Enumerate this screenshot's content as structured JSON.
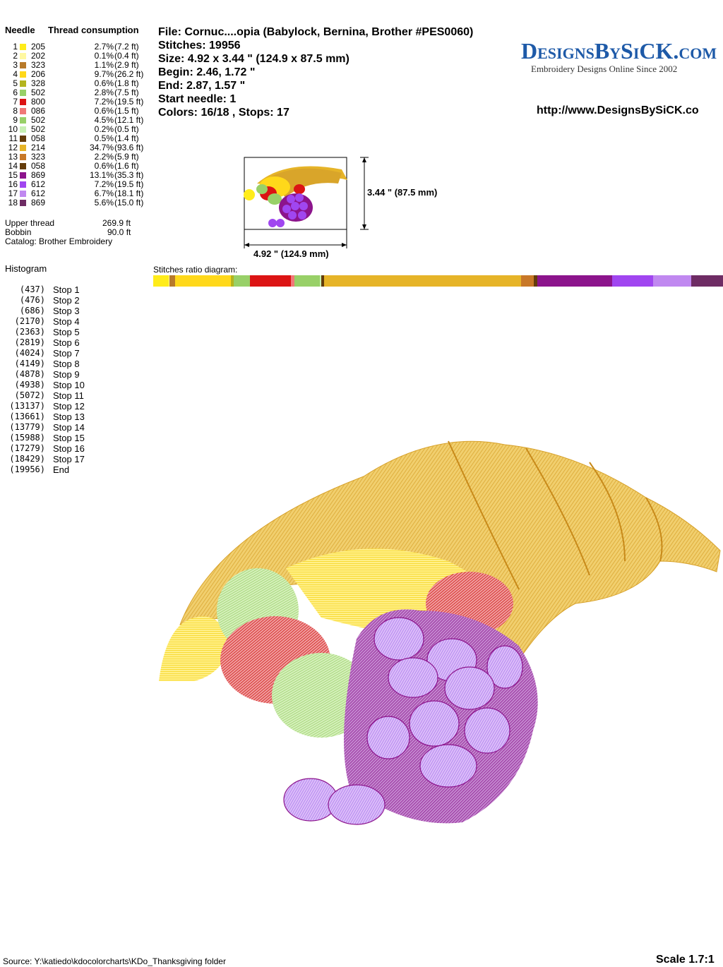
{
  "legend": {
    "needle_header": "Needle",
    "consumption_header": "Thread consumption",
    "rows": [
      {
        "num": "1",
        "code": "205",
        "pct": "2.7%",
        "len": "(7.2 ft)",
        "color": "#ffec1a",
        "ratio": 2.7
      },
      {
        "num": "2",
        "code": "202",
        "pct": "0.1%",
        "len": "(0.4 ft)",
        "color": "#fff8a0",
        "ratio": 0.1
      },
      {
        "num": "3",
        "code": "323",
        "pct": "1.1%",
        "len": "(2.9 ft)",
        "color": "#b87a2a",
        "ratio": 1.1
      },
      {
        "num": "4",
        "code": "206",
        "pct": "9.7%",
        "len": "(26.2 ft)",
        "color": "#ffd81a",
        "ratio": 9.7
      },
      {
        "num": "5",
        "code": "328",
        "pct": "0.6%",
        "len": "(1.8 ft)",
        "color": "#b4b41e",
        "ratio": 0.6
      },
      {
        "num": "6",
        "code": "502",
        "pct": "2.8%",
        "len": "(7.5 ft)",
        "color": "#98d068",
        "ratio": 2.8
      },
      {
        "num": "7",
        "code": "800",
        "pct": "7.2%",
        "len": "(19.5 ft)",
        "color": "#dc1414",
        "ratio": 7.2
      },
      {
        "num": "8",
        "code": "086",
        "pct": "0.6%",
        "len": "(1.5 ft)",
        "color": "#f07878",
        "ratio": 0.6
      },
      {
        "num": "9",
        "code": "502",
        "pct": "4.5%",
        "len": "(12.1 ft)",
        "color": "#98d068",
        "ratio": 4.5
      },
      {
        "num": "10",
        "code": "502",
        "pct": "0.2%",
        "len": "(0.5 ft)",
        "color": "#c8f0b4",
        "ratio": 0.2
      },
      {
        "num": "11",
        "code": "058",
        "pct": "0.5%",
        "len": "(1.4 ft)",
        "color": "#643c0a",
        "ratio": 0.5
      },
      {
        "num": "12",
        "code": "214",
        "pct": "34.7%",
        "len": "(93.6 ft)",
        "color": "#e6b428",
        "ratio": 34.7
      },
      {
        "num": "13",
        "code": "323",
        "pct": "2.2%",
        "len": "(5.9 ft)",
        "color": "#c87828",
        "ratio": 2.2
      },
      {
        "num": "14",
        "code": "058",
        "pct": "0.6%",
        "len": "(1.6 ft)",
        "color": "#643c0a",
        "ratio": 0.6
      },
      {
        "num": "15",
        "code": "869",
        "pct": "13.1%",
        "len": "(35.3 ft)",
        "color": "#8c148c",
        "ratio": 13.1
      },
      {
        "num": "16",
        "code": "612",
        "pct": "7.2%",
        "len": "(19.5 ft)",
        "color": "#a046f0",
        "ratio": 7.2
      },
      {
        "num": "17",
        "code": "612",
        "pct": "6.7%",
        "len": "(18.1 ft)",
        "color": "#c088f0",
        "ratio": 6.7
      },
      {
        "num": "18",
        "code": "869",
        "pct": "5.6%",
        "len": "(15.0 ft)",
        "color": "#6e2c64",
        "ratio": 5.6
      }
    ],
    "upper_thread_label": "Upper thread",
    "upper_thread_value": "269.9 ft",
    "bobbin_label": "Bobbin",
    "bobbin_value": "90.0 ft",
    "catalog": "Catalog: Brother Embroidery"
  },
  "info": {
    "file": "File: Cornuc....opia  (Babylock, Bernina, Brother #PES0060)",
    "stitches": "Stitches: 19956",
    "size": "Size: 4.92 x 3.44 \" (124.9 x 87.5 mm)",
    "begin": "Begin: 2.46, 1.72 \"",
    "end": "End: 2.87, 1.57 \"",
    "start_needle": "Start needle: 1",
    "colors": "Colors: 16/18 , Stops: 17"
  },
  "brand": {
    "logo": "DesignsBySiCK.com",
    "tagline": "Embroidery Designs Online Since 2002",
    "url": "http://www.DesignsBySiCK.co"
  },
  "thumbnail": {
    "height_label": "3.44 \" (87.5 mm)",
    "width_label": "4.92 \" (124.9 mm)"
  },
  "stitches_ratio_label": "Stitches ratio diagram:",
  "histogram": {
    "title": "Histogram",
    "stops": [
      {
        "count": "(437)",
        "label": "Stop 1"
      },
      {
        "count": "(476)",
        "label": "Stop 2"
      },
      {
        "count": "(686)",
        "label": "Stop 3"
      },
      {
        "count": "(2170)",
        "label": "Stop 4"
      },
      {
        "count": "(2363)",
        "label": "Stop 5"
      },
      {
        "count": "(2819)",
        "label": "Stop 6"
      },
      {
        "count": "(4024)",
        "label": "Stop 7"
      },
      {
        "count": "(4149)",
        "label": "Stop 8"
      },
      {
        "count": "(4878)",
        "label": "Stop 9"
      },
      {
        "count": "(4938)",
        "label": "Stop 10"
      },
      {
        "count": "(5072)",
        "label": "Stop 11"
      },
      {
        "count": "(13137)",
        "label": "Stop 12"
      },
      {
        "count": "(13661)",
        "label": "Stop 13"
      },
      {
        "count": "(13779)",
        "label": "Stop 14"
      },
      {
        "count": "(15988)",
        "label": "Stop 15"
      },
      {
        "count": "(17279)",
        "label": "Stop 16"
      },
      {
        "count": "(18429)",
        "label": "Stop 17"
      },
      {
        "count": "(19956)",
        "label": "End"
      }
    ]
  },
  "footer": {
    "source": "Source: Y:\\katiedo\\kdocolorcharts\\KDo_Thanksgiving folder",
    "scale": "Scale 1.7:1"
  }
}
